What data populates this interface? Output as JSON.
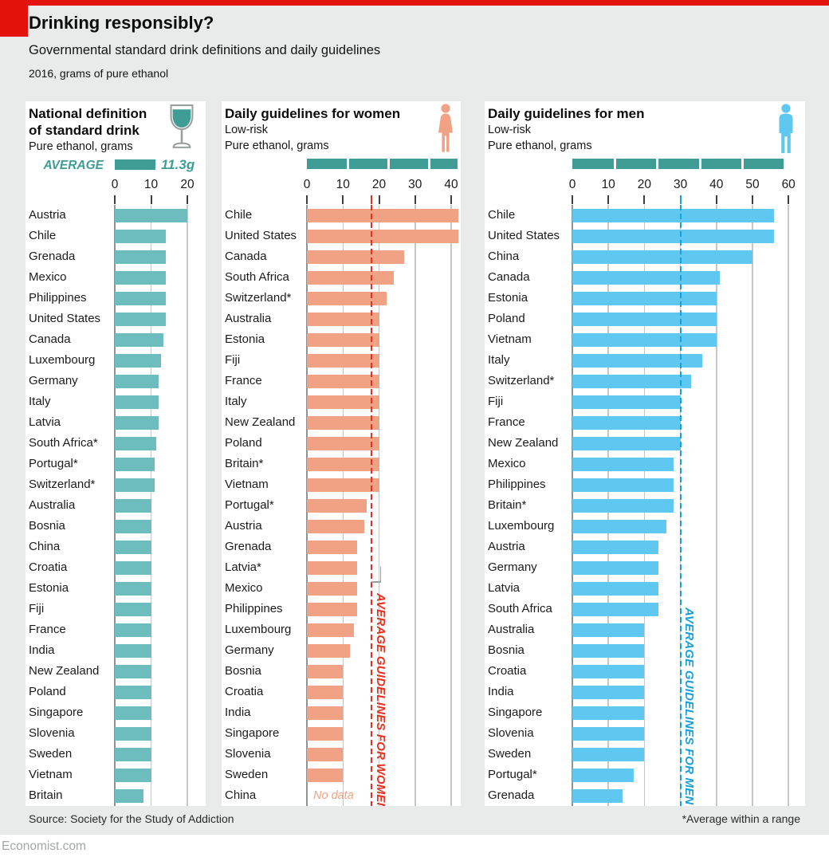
{
  "header": {
    "title": "Drinking responsibly?",
    "subtitle": "Governmental standard drink definitions and daily guidelines",
    "caption": "2016, grams of pure ethanol"
  },
  "footer": {
    "source": "Source: Society for the Study of Addiction",
    "note": "*Average within a range",
    "site": "Economist.com"
  },
  "colors": {
    "brand_red": "#e3120b",
    "background": "#e9eaea",
    "panel_bg": "#ffffff",
    "teal_bar": "#6dbdbf",
    "teal_dark": "#3f9d96",
    "salmon_bar": "#f1a285",
    "blue_bar": "#5ec8f0",
    "red_accent": "#e8301f",
    "blue_accent": "#18a0da",
    "gridline": "#c6c8c8",
    "zero_line": "#8f9393",
    "tick": "#3f3f3f"
  },
  "chart_data": [
    {
      "type": "bar",
      "orientation": "horizontal",
      "title": "National definition of standard drink",
      "title_lines": [
        "National definition",
        "of standard drink"
      ],
      "subtitle_lines": [
        "Pure ethanol, grams"
      ],
      "icon": "wine-glass-icon",
      "bar_color": "#6dbdbf",
      "axis": {
        "ticks": [
          0,
          10,
          20
        ],
        "unit": "grams"
      },
      "average_legend": {
        "label": "AVERAGE",
        "value": 11.3,
        "value_label": "11.3g"
      },
      "categories": [
        "Austria",
        "Chile",
        "Grenada",
        "Mexico",
        "Philippines",
        "United States",
        "Canada",
        "Luxembourg",
        "Germany",
        "Italy",
        "Latvia",
        "South Africa*",
        "Portugal*",
        "Switzerland*",
        "Australia",
        "Bosnia",
        "China",
        "Croatia",
        "Estonia",
        "Fiji",
        "France",
        "India",
        "New Zealand",
        "Poland",
        "Singapore",
        "Slovenia",
        "Sweden",
        "Vietnam",
        "Britain"
      ],
      "values": [
        20,
        14,
        14,
        14,
        14,
        14,
        13.5,
        12.8,
        12,
        12,
        12,
        11.5,
        11,
        11,
        10,
        10,
        10,
        10,
        10,
        10,
        10,
        10,
        10,
        10,
        10,
        10,
        10,
        10,
        8
      ]
    },
    {
      "type": "bar",
      "orientation": "horizontal",
      "title": "Daily guidelines for women",
      "subtitle_lines": [
        "Low-risk",
        "Pure ethanol, grams"
      ],
      "icon": "woman-icon",
      "bar_color": "#f1a285",
      "axis": {
        "ticks": [
          0,
          10,
          20,
          30,
          40
        ],
        "unit": "grams"
      },
      "average_line": {
        "value": 18,
        "label": "AVERAGE GUIDELINES FOR WOMEN",
        "color": "#e8301f"
      },
      "strip": {
        "boundaries": [
          0,
          11.3,
          22.6,
          33.9,
          42
        ]
      },
      "no_data_label": "No data",
      "categories": [
        "Chile",
        "United States",
        "Canada",
        "South Africa",
        "Switzerland*",
        "Australia",
        "Estonia",
        "Fiji",
        "France",
        "Italy",
        "New Zealand",
        "Poland",
        "Britain*",
        "Vietnam",
        "Portugal*",
        "Austria",
        "Grenada",
        "Latvia*",
        "Mexico",
        "Philippines",
        "Luxembourg",
        "Germany",
        "Bosnia",
        "Croatia",
        "India",
        "Singapore",
        "Slovenia",
        "Sweden",
        "China"
      ],
      "values": [
        42,
        42,
        27,
        24,
        22,
        20,
        20,
        20,
        20,
        20,
        20,
        20,
        20,
        20,
        16.5,
        16,
        14,
        14,
        14,
        14,
        13,
        12,
        10,
        10,
        10,
        10,
        10,
        10,
        null
      ]
    },
    {
      "type": "bar",
      "orientation": "horizontal",
      "title": "Daily guidelines for men",
      "subtitle_lines": [
        "Low-risk",
        "Pure ethanol, grams"
      ],
      "icon": "man-icon",
      "bar_color": "#5ec8f0",
      "axis": {
        "ticks": [
          0,
          10,
          20,
          30,
          40,
          50,
          60
        ],
        "unit": "grams"
      },
      "average_line": {
        "value": 30,
        "label": "AVERAGE GUIDELINES FOR MEN",
        "color": "#18a0da"
      },
      "strip": {
        "boundaries": [
          0,
          11.8,
          23.6,
          35.4,
          47.2,
          59
        ]
      },
      "categories": [
        "Chile",
        "United States",
        "China",
        "Canada",
        "Estonia",
        "Poland",
        "Vietnam",
        "Italy",
        "Switzerland*",
        "Fiji",
        "France",
        "New Zealand",
        "Mexico",
        "Philippines",
        "Britain*",
        "Luxembourg",
        "Austria",
        "Germany",
        "Latvia",
        "South Africa",
        "Australia",
        "Bosnia",
        "Croatia",
        "India",
        "Singapore",
        "Slovenia",
        "Sweden",
        "Portugal*",
        "Grenada"
      ],
      "values": [
        56,
        56,
        50,
        41,
        40,
        40,
        40,
        36,
        33,
        30,
        30,
        30,
        28,
        28,
        28,
        26,
        24,
        24,
        24,
        24,
        20,
        20,
        20,
        20,
        20,
        20,
        20,
        17,
        14
      ]
    }
  ]
}
